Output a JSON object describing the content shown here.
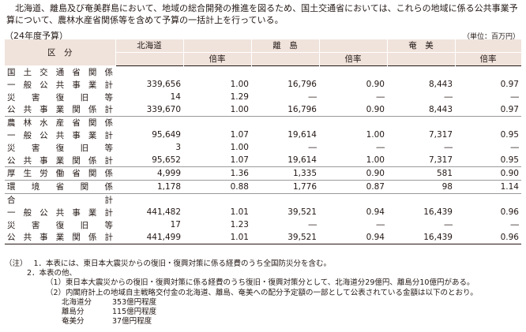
{
  "intro": "北海道、離島及び奄美群島において、地域の総合開発の推進を図るため、国土交通省においては、これらの地域に係る公共事業予算について、農林水産省関係等を含めて予算の一括計上を行っている。",
  "caption": "（24年度予算）",
  "unit": "（単位：百万円）",
  "headers": {
    "category": "区　分",
    "hokkaido": "北海道",
    "ritou": "離　島",
    "amami": "奄　美",
    "rate": "倍率"
  },
  "rows": [
    {
      "label": "国土交通省関係",
      "indent": false,
      "v": [
        "",
        "",
        "",
        "",
        "",
        ""
      ]
    },
    {
      "label": "一般公共事業計",
      "indent": true,
      "v": [
        "339,656",
        "1.00",
        "16,796",
        "0.90",
        "8,443",
        "0.97"
      ]
    },
    {
      "label": "災害復旧等",
      "indent": true,
      "v": [
        "14",
        "1.29",
        "―",
        "―",
        "―",
        "―"
      ]
    },
    {
      "label": "公共事業関係計",
      "indent": true,
      "v": [
        "339,670",
        "1.00",
        "16,796",
        "0.90",
        "8,443",
        "0.97"
      ]
    },
    {
      "label": "農林水産省関係",
      "indent": false,
      "v": [
        "",
        "",
        "",
        "",
        "",
        ""
      ]
    },
    {
      "label": "一般公共事業計",
      "indent": true,
      "v": [
        "95,649",
        "1.07",
        "19,614",
        "1.00",
        "7,317",
        "0.95"
      ]
    },
    {
      "label": "災害復旧等",
      "indent": true,
      "v": [
        "3",
        "1.00",
        "―",
        "―",
        "―",
        "―"
      ]
    },
    {
      "label": "公共事業関係計",
      "indent": true,
      "v": [
        "95,652",
        "1.07",
        "19,614",
        "1.00",
        "7,317",
        "0.95"
      ]
    },
    {
      "label": "厚生労働省関係",
      "indent": false,
      "v": [
        "4,999",
        "1.36",
        "1,335",
        "0.90",
        "581",
        "0.90"
      ]
    },
    {
      "label": "環境省関係",
      "indent": false,
      "v": [
        "1,178",
        "0.88",
        "1,776",
        "0.87",
        "98",
        "1.14"
      ]
    },
    {
      "label": "合計",
      "indent": false,
      "v": [
        "",
        "",
        "",
        "",
        "",
        ""
      ]
    },
    {
      "label": "一般公共事業計",
      "indent": true,
      "v": [
        "441,482",
        "1.01",
        "39,521",
        "0.94",
        "16,439",
        "0.96"
      ]
    },
    {
      "label": "災害復旧等",
      "indent": true,
      "v": [
        "17",
        "1.23",
        "―",
        "―",
        "―",
        "―"
      ]
    },
    {
      "label": "公共事業関係計",
      "indent": true,
      "v": [
        "441,499",
        "1.01",
        "39,521",
        "0.94",
        "16,439",
        "0.96"
      ]
    }
  ],
  "notes": {
    "mark": "（注）",
    "n1": "1．本表には、東日本大震災からの復旧・復興対策に係る経費のうち全国防災分を含む。",
    "n2": "2．本表の他、",
    "n2_1": "（1）東日本大震災からの復旧・復興対策に係る経費のうち復旧・復興対策分として、北海道分29億円、離島分10億円がある。",
    "n2_2": "（2）内閣府計上の地域自主戦略交付金の北海道、離島、奄美への配分予定額の一部として公表されている金額は以下のとおり。",
    "alloc": [
      {
        "name": "北海道分",
        "amount": "353億円程度"
      },
      {
        "name": "離島分",
        "amount": "115億円程度"
      },
      {
        "name": "奄美分",
        "amount": "37億円程度"
      }
    ]
  }
}
